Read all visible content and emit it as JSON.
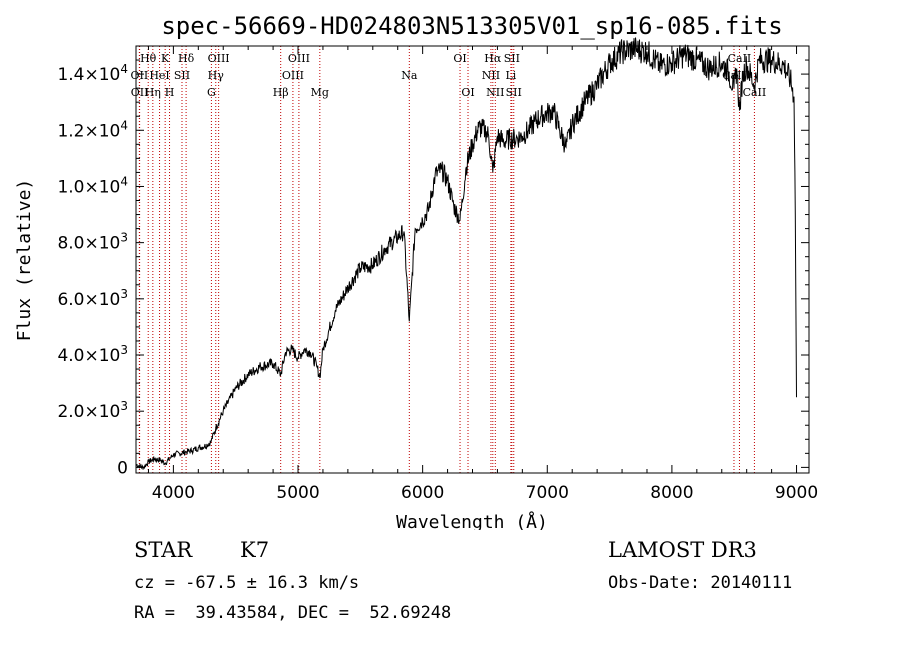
{
  "chart_data": {
    "type": "line",
    "title": "spec-56669-HD024803N513305V01_sp16-085.fits",
    "xlabel": "Wavelength (Å)",
    "ylabel": "Flux (relative)",
    "xlim": [
      3700,
      9100
    ],
    "ylim": [
      -200,
      15000
    ],
    "x_ticks": [
      {
        "value": 4000,
        "label": "4000"
      },
      {
        "value": 5000,
        "label": "5000"
      },
      {
        "value": 6000,
        "label": "6000"
      },
      {
        "value": 7000,
        "label": "7000"
      },
      {
        "value": 8000,
        "label": "8000"
      },
      {
        "value": 9000,
        "label": "9000"
      }
    ],
    "y_ticks": [
      {
        "value": 0,
        "mant": "0",
        "exp": ""
      },
      {
        "value": 2000,
        "mant": "2.0×10",
        "exp": "3"
      },
      {
        "value": 4000,
        "mant": "4.0×10",
        "exp": "3"
      },
      {
        "value": 6000,
        "mant": "6.0×10",
        "exp": "3"
      },
      {
        "value": 8000,
        "mant": "8.0×10",
        "exp": "3"
      },
      {
        "value": 10000,
        "mant": "1.0×10",
        "exp": "4"
      },
      {
        "value": 12000,
        "mant": "1.2×10",
        "exp": "4"
      },
      {
        "value": 14000,
        "mant": "1.4×10",
        "exp": "4"
      }
    ],
    "series": [
      {
        "name": "flux",
        "color": "#000000",
        "x": [
          3700,
          3760,
          3800,
          3850,
          3900,
          3933,
          3968,
          4000,
          4050,
          4102,
          4150,
          4200,
          4250,
          4300,
          4340,
          4400,
          4500,
          4600,
          4700,
          4800,
          4861,
          4900,
          4950,
          5000,
          5050,
          5100,
          5150,
          5175,
          5200,
          5300,
          5400,
          5500,
          5600,
          5700,
          5800,
          5850,
          5893,
          5940,
          6000,
          6050,
          6100,
          6150,
          6200,
          6250,
          6300,
          6350,
          6400,
          6450,
          6500,
          6530,
          6563,
          6600,
          6650,
          6700,
          6750,
          6800,
          6850,
          6900,
          6950,
          7000,
          7050,
          7100,
          7150,
          7200,
          7300,
          7400,
          7500,
          7600,
          7700,
          7800,
          7900,
          8000,
          8100,
          8200,
          8300,
          8400,
          8450,
          8498,
          8520,
          8542,
          8570,
          8600,
          8662,
          8700,
          8800,
          8900,
          8950,
          8980,
          8990,
          9000
        ],
        "y": [
          100,
          0,
          200,
          300,
          250,
          150,
          300,
          450,
          500,
          550,
          600,
          700,
          750,
          900,
          1400,
          2000,
          2800,
          3300,
          3600,
          3700,
          3300,
          4100,
          4200,
          3900,
          4200,
          4100,
          3600,
          3200,
          4200,
          5600,
          6400,
          7100,
          7200,
          7800,
          8200,
          8400,
          5200,
          8500,
          8800,
          9200,
          10400,
          10600,
          10200,
          9300,
          8800,
          10700,
          11500,
          12100,
          12000,
          11800,
          10500,
          11800,
          11600,
          11700,
          11700,
          11800,
          12000,
          12300,
          12500,
          12600,
          12700,
          12000,
          11400,
          12200,
          13000,
          13600,
          14400,
          14800,
          14900,
          14800,
          14300,
          14400,
          14700,
          14500,
          14200,
          14400,
          14100,
          13500,
          14200,
          12700,
          14000,
          14300,
          13600,
          14500,
          14500,
          14300,
          13800,
          13200,
          9000,
          2500
        ]
      }
    ],
    "lines": [
      {
        "name": "Hθ",
        "wl": 3798,
        "row": 0
      },
      {
        "name": "OII",
        "wl": 3727,
        "row": 1
      },
      {
        "name": "OII",
        "wl": 3729,
        "row": 2
      },
      {
        "name": "HeI",
        "wl": 3889,
        "row": 1
      },
      {
        "name": "K",
        "wl": 3934,
        "row": 0
      },
      {
        "name": "Hη",
        "wl": 3835,
        "row": 2
      },
      {
        "name": "SII",
        "wl": 4069,
        "row": 1
      },
      {
        "name": "H",
        "wl": 3969,
        "row": 2
      },
      {
        "name": "Hδ",
        "wl": 4102,
        "row": 0
      },
      {
        "name": "OIII",
        "wl": 4363,
        "row": 0
      },
      {
        "name": "Hγ",
        "wl": 4340,
        "row": 1
      },
      {
        "name": "G",
        "wl": 4305,
        "row": 2
      },
      {
        "name": "OIII",
        "wl": 5007,
        "row": 0
      },
      {
        "name": "OIII",
        "wl": 4959,
        "row": 1
      },
      {
        "name": "Hβ",
        "wl": 4861,
        "row": 2
      },
      {
        "name": "Mg",
        "wl": 5175,
        "row": 2
      },
      {
        "name": "Na",
        "wl": 5893,
        "row": 1
      },
      {
        "name": "OI",
        "wl": 6300,
        "row": 0
      },
      {
        "name": "OI",
        "wl": 6364,
        "row": 2
      },
      {
        "name": "Hα",
        "wl": 6563,
        "row": 0
      },
      {
        "name": "NII",
        "wl": 6548,
        "row": 1
      },
      {
        "name": "NII",
        "wl": 6583,
        "row": 2
      },
      {
        "name": "SII",
        "wl": 6716,
        "row": 0
      },
      {
        "name": "Li",
        "wl": 6708,
        "row": 1
      },
      {
        "name": "SII",
        "wl": 6731,
        "row": 2
      },
      {
        "name": "CaII",
        "wl": 8542,
        "row": 0
      },
      {
        "name": "CaII",
        "wl": 8498,
        "row": 1
      },
      {
        "name": "CaII",
        "wl": 8662,
        "row": 2
      }
    ]
  },
  "info": {
    "object_class": "STAR",
    "subclass": "K7",
    "survey": "LAMOST DR3",
    "redshift": "cz = -67.5 ± 16.3 km/s",
    "obs_date": "Obs-Date: 20140111",
    "coords": "RA =  39.43584, DEC =  52.69248"
  }
}
